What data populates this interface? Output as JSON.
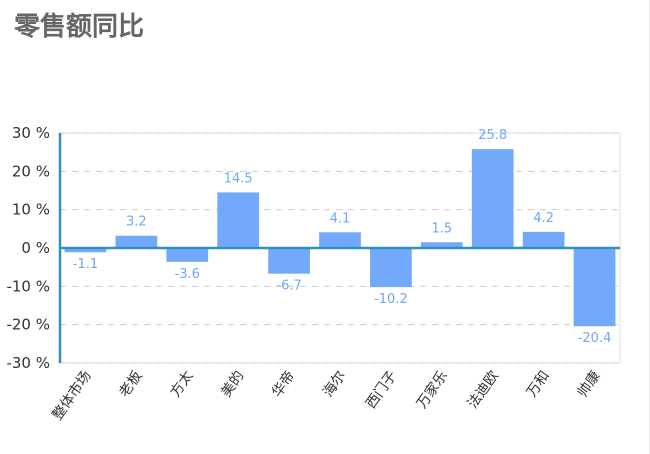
{
  "chart_data": {
    "type": "bar",
    "title": "零售额同比",
    "categories": [
      "整体市场",
      "老板",
      "方太",
      "美的",
      "华帝",
      "海尔",
      "西门子",
      "万家乐",
      "法迪欧",
      "万和",
      "帅康"
    ],
    "values": [
      -1.1,
      3.2,
      -3.6,
      14.5,
      -6.7,
      4.1,
      -10.2,
      1.5,
      25.8,
      4.2,
      -20.4
    ],
    "ylim": [
      -30,
      30
    ],
    "yticks": [
      30,
      20,
      10,
      0,
      -10,
      -20,
      -30
    ],
    "ytick_labels": [
      "30 %",
      "20 %",
      "10 %",
      "0 %",
      "-10 %",
      "-20 %",
      "-30 %"
    ],
    "xlabel": "",
    "ylabel": "",
    "grid": true,
    "legend": "none",
    "colors": {
      "bar": "#72a9fb",
      "axis": "#2f8fbf",
      "zero_line": "#2f8fbf",
      "grid": "#cccccc",
      "label": "#6fa8f5",
      "title": "#666666"
    }
  }
}
